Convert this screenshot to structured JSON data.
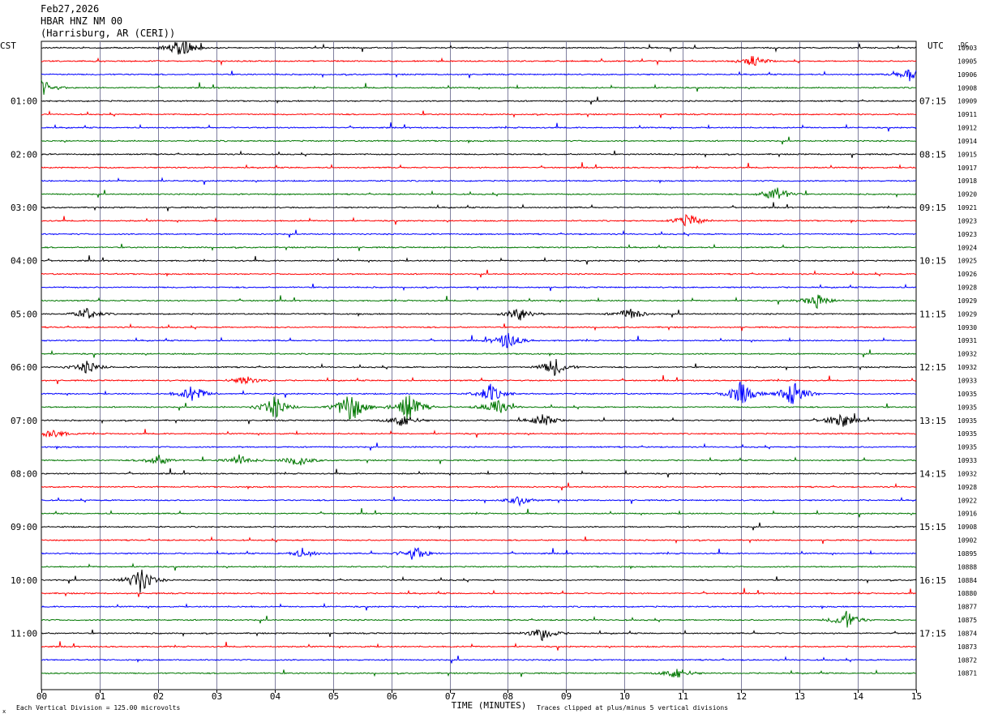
{
  "header": {
    "date": "Feb27,2026",
    "station": "HBAR HNZ NM 00",
    "location": "(Harrisburg, AR (CERI))"
  },
  "left_timezone": "CST",
  "right_timezone": "UTC",
  "dc_label": "DC",
  "footer": {
    "scale_note": "Each Vertical Division =  125.00 microvolts",
    "clip_note": "Traces clipped at plus/minus 5 vertical divisions",
    "corner_mark": "x"
  },
  "colors": {
    "trace_cycle": [
      "#000000",
      "#ff0000",
      "#0000ff",
      "#007700"
    ],
    "grid": "#7f7f9f"
  },
  "chart_data": {
    "type": "line",
    "title": "HBAR HNZ NM 00",
    "xlabel": "TIME (MINUTES)",
    "x_ticks": [
      "00",
      "01",
      "02",
      "03",
      "04",
      "05",
      "06",
      "07",
      "08",
      "09",
      "10",
      "11",
      "12",
      "13",
      "14",
      "15"
    ],
    "xlim": [
      0,
      15
    ],
    "left_hour_labels": [
      "01:00",
      "02:00",
      "03:00",
      "04:00",
      "05:00",
      "06:00",
      "07:00",
      "08:00",
      "09:00",
      "10:00",
      "11:00"
    ],
    "right_hour_labels": [
      "07:15",
      "08:15",
      "09:15",
      "10:15",
      "11:15",
      "12:15",
      "13:15",
      "14:15",
      "15:15",
      "16:15",
      "17:15"
    ],
    "dc_offsets": [
      "10903",
      "10905",
      "10906",
      "10908",
      "10909",
      "10911",
      "10912",
      "10914",
      "10915",
      "10917",
      "10918",
      "10920",
      "10921",
      "10923",
      "10923",
      "10924",
      "10925",
      "10926",
      "10928",
      "10929",
      "10929",
      "10930",
      "10931",
      "10932",
      "10932",
      "10933",
      "10935",
      "10935",
      "10935",
      "10935",
      "10935",
      "10933",
      "10932",
      "10928",
      "10922",
      "10916",
      "10908",
      "10902",
      "10895",
      "10888",
      "10884",
      "10880",
      "10877",
      "10875",
      "10874",
      "10873",
      "10872",
      "10871"
    ],
    "events": [
      {
        "line": 0,
        "minute": 2.4,
        "amp": 1.2
      },
      {
        "line": 1,
        "minute": 12.2,
        "amp": 0.6
      },
      {
        "line": 2,
        "minute": 14.9,
        "amp": 0.8
      },
      {
        "line": 3,
        "minute": 0.0,
        "amp": 1.0
      },
      {
        "line": 11,
        "minute": 12.6,
        "amp": 0.9
      },
      {
        "line": 13,
        "minute": 11.1,
        "amp": 0.8
      },
      {
        "line": 19,
        "minute": 13.3,
        "amp": 0.8
      },
      {
        "line": 20,
        "minute": 0.8,
        "amp": 0.7
      },
      {
        "line": 20,
        "minute": 8.2,
        "amp": 0.8
      },
      {
        "line": 20,
        "minute": 10.1,
        "amp": 0.7
      },
      {
        "line": 22,
        "minute": 8.0,
        "amp": 1.0
      },
      {
        "line": 24,
        "minute": 0.8,
        "amp": 0.7
      },
      {
        "line": 24,
        "minute": 8.8,
        "amp": 1.0
      },
      {
        "line": 25,
        "minute": 3.5,
        "amp": 0.5
      },
      {
        "line": 26,
        "minute": 2.6,
        "amp": 1.0
      },
      {
        "line": 26,
        "minute": 7.7,
        "amp": 1.0
      },
      {
        "line": 26,
        "minute": 12.0,
        "amp": 1.4
      },
      {
        "line": 26,
        "minute": 12.9,
        "amp": 1.6
      },
      {
        "line": 27,
        "minute": 4.0,
        "amp": 1.2
      },
      {
        "line": 27,
        "minute": 5.3,
        "amp": 2.0
      },
      {
        "line": 27,
        "minute": 6.3,
        "amp": 1.6
      },
      {
        "line": 27,
        "minute": 7.8,
        "amp": 1.0
      },
      {
        "line": 28,
        "minute": 6.2,
        "amp": 0.8
      },
      {
        "line": 28,
        "minute": 8.6,
        "amp": 0.7
      },
      {
        "line": 28,
        "minute": 13.7,
        "amp": 1.0
      },
      {
        "line": 29,
        "minute": 0.2,
        "amp": 0.6
      },
      {
        "line": 31,
        "minute": 2.0,
        "amp": 0.6
      },
      {
        "line": 31,
        "minute": 3.4,
        "amp": 0.6
      },
      {
        "line": 31,
        "minute": 4.4,
        "amp": 0.7
      },
      {
        "line": 34,
        "minute": 8.2,
        "amp": 0.5
      },
      {
        "line": 38,
        "minute": 4.5,
        "amp": 0.5
      },
      {
        "line": 38,
        "minute": 6.4,
        "amp": 0.8
      },
      {
        "line": 40,
        "minute": 1.7,
        "amp": 1.4
      },
      {
        "line": 43,
        "minute": 13.8,
        "amp": 1.0
      },
      {
        "line": 44,
        "minute": 8.6,
        "amp": 0.8
      },
      {
        "line": 47,
        "minute": 10.9,
        "amp": 0.7
      }
    ]
  }
}
